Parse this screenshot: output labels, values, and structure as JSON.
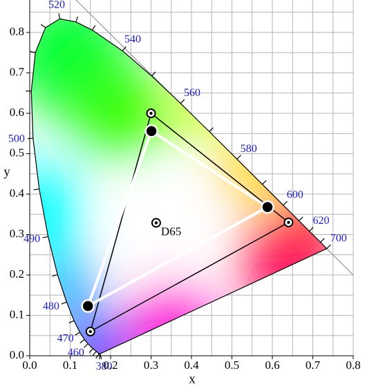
{
  "chart_data": {
    "type": "chromaticity",
    "xlabel": "x",
    "ylabel": "y",
    "xlim": [
      0,
      0.8
    ],
    "ylim": [
      0,
      0.88
    ],
    "xticks": [
      {
        "value": 0,
        "label": "0.0"
      },
      0.1,
      0.2,
      0.3,
      0.4,
      0.5,
      0.6,
      0.7,
      0.8
    ],
    "yticks": [
      {
        "value": 0,
        "label": "0.0"
      },
      0.1,
      0.2,
      0.3,
      0.4,
      0.5,
      0.6,
      0.7,
      0.8
    ],
    "grid": true,
    "locus": {
      "x": [
        0.1741,
        0.1733,
        0.1714,
        0.1644,
        0.1566,
        0.144,
        0.1355,
        0.1241,
        0.1096,
        0.0913,
        0.0687,
        0.0454,
        0.0235,
        0.0082,
        0.0039,
        0.0139,
        0.0389,
        0.0743,
        0.1142,
        0.1547,
        0.2296,
        0.3016,
        0.3731,
        0.4441,
        0.5125,
        0.5752,
        0.627,
        0.6658,
        0.6915,
        0.719,
        0.7347
      ],
      "y": [
        0.005,
        0.0048,
        0.0051,
        0.0109,
        0.0177,
        0.0297,
        0.0399,
        0.0578,
        0.0868,
        0.1327,
        0.2007,
        0.295,
        0.4127,
        0.5384,
        0.6548,
        0.7502,
        0.812,
        0.8338,
        0.8262,
        0.8059,
        0.7543,
        0.6923,
        0.6245,
        0.5547,
        0.4866,
        0.4242,
        0.3725,
        0.334,
        0.3083,
        0.2809,
        0.2653
      ],
      "labels": [
        380,
        null,
        null,
        null,
        null,
        460,
        null,
        470,
        null,
        480,
        null,
        490,
        null,
        500,
        null,
        null,
        null,
        520,
        null,
        null,
        540,
        null,
        560,
        null,
        580,
        null,
        600,
        null,
        620,
        null,
        700
      ]
    },
    "white_point": {
      "name": "D65",
      "x": 0.3127,
      "y": 0.329
    },
    "series": [
      {
        "x": [
          0.64,
          0.3,
          0.15
        ],
        "y": [
          0.33,
          0.6,
          0.06
        ],
        "color": "#000000"
      },
      {
        "x": [
          0.588,
          0.301,
          0.144
        ],
        "y": [
          0.368,
          0.556,
          0.123
        ],
        "color": "#ffffff"
      }
    ]
  }
}
